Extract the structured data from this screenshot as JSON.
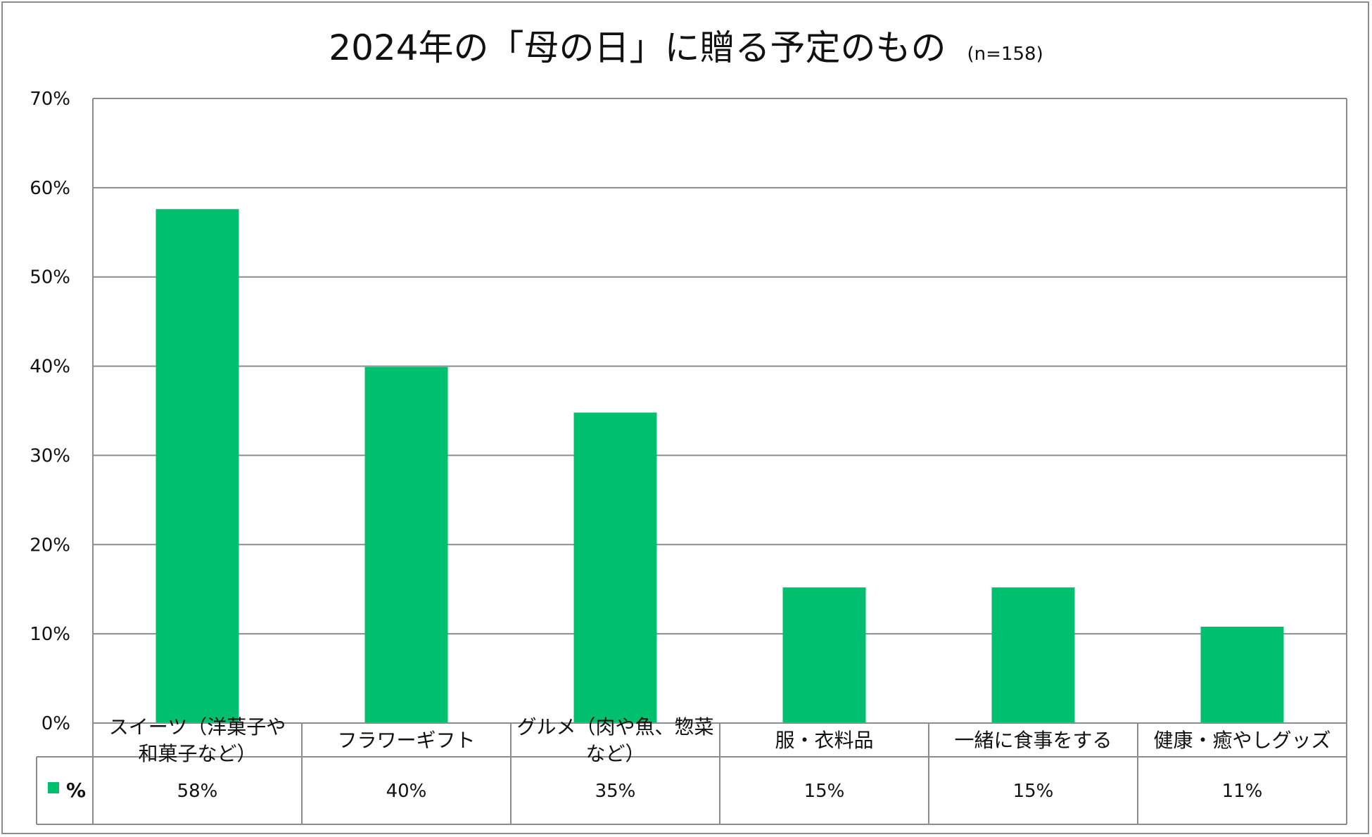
{
  "chart_data": {
    "type": "bar",
    "title": "2024年の「母の日」に贈る予定のもの",
    "subtitle": "(n=158)",
    "categories": [
      [
        "スイーツ（洋菓子や",
        "和菓子など）"
      ],
      [
        "フラワーギフト"
      ],
      [
        "グルメ（肉や魚、惣菜",
        "など）"
      ],
      [
        "服・衣料品"
      ],
      [
        "一緒に食事をする"
      ],
      [
        "健康・癒やしグッズ"
      ]
    ],
    "series": [
      {
        "name": "%",
        "values": [
          57.6,
          39.9,
          34.8,
          15.2,
          15.2,
          10.8
        ],
        "labels": [
          "58%",
          "40%",
          "35%",
          "15%",
          "15%",
          "11%"
        ]
      }
    ],
    "yticks": [
      "0%",
      "10%",
      "20%",
      "30%",
      "40%",
      "50%",
      "60%",
      "70%"
    ],
    "ylim": [
      0,
      70
    ],
    "grid": true,
    "legend": "data-table",
    "colors": {
      "bar": "#00bf6f",
      "grid": "#8c8c8c",
      "axis": "#8c8c8c"
    }
  }
}
